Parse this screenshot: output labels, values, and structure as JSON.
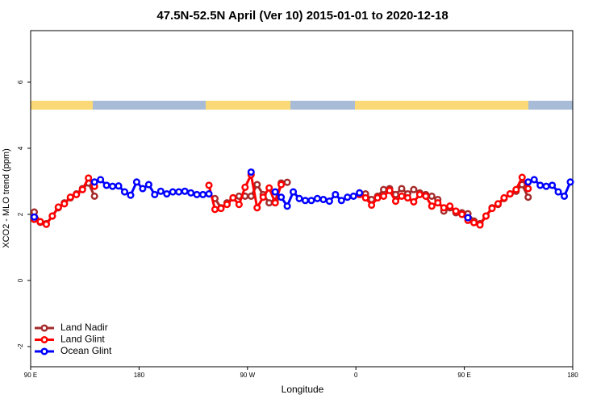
{
  "chart_data": {
    "type": "line",
    "title": "47.5N-52.5N April (Ver 10)   2015-01-01 to 2020-12-18",
    "xlabel": "Longitude",
    "ylabel": "XCO2 - MLO trend (ppm)",
    "x": [
      93,
      98,
      103,
      108,
      113,
      118,
      123,
      128,
      133,
      138,
      143,
      148,
      153,
      158,
      163,
      168,
      173,
      178,
      183,
      188,
      193,
      198,
      203,
      208,
      213,
      218,
      223,
      228,
      233,
      238,
      243,
      248,
      253,
      258,
      263,
      268,
      273,
      278,
      283,
      288,
      293,
      298,
      303,
      308,
      313,
      318,
      323,
      328,
      333,
      338,
      343,
      348,
      353,
      358,
      363,
      368,
      373,
      378,
      383,
      388,
      393,
      398,
      403,
      408,
      413,
      418,
      423,
      428,
      433,
      438,
      443,
      448,
      453,
      458,
      463,
      468,
      473,
      478,
      483,
      488,
      493,
      498,
      503,
      508,
      513,
      518,
      523,
      528,
      533,
      538
    ],
    "series": [
      {
        "name": "Land Nadir",
        "color": "#a52a2a",
        "values": [
          2.07,
          1.76,
          1.72,
          1.95,
          2.2,
          2.35,
          2.5,
          2.62,
          2.78,
          2.95,
          2.55,
          null,
          null,
          null,
          null,
          null,
          null,
          null,
          null,
          null,
          null,
          null,
          null,
          null,
          null,
          null,
          null,
          null,
          null,
          null,
          2.48,
          2.2,
          2.35,
          2.5,
          2.55,
          2.55,
          2.55,
          2.9,
          2.6,
          2.35,
          2.4,
          2.95,
          2.97,
          null,
          null,
          null,
          null,
          null,
          null,
          null,
          null,
          null,
          null,
          null,
          2.65,
          2.62,
          2.45,
          2.55,
          2.75,
          2.78,
          2.6,
          2.78,
          2.62,
          2.75,
          2.65,
          2.6,
          2.55,
          2.45,
          2.1,
          2.2,
          2.05,
          2.05,
          2.02,
          1.8,
          1.72,
          1.95,
          2.2,
          2.3,
          2.48,
          2.62,
          2.7,
          2.9,
          2.52,
          null,
          null,
          null,
          null,
          null,
          null,
          null
        ]
      },
      {
        "name": "Land Glint",
        "color": "#ff0000",
        "values": [
          1.85,
          1.78,
          1.7,
          1.95,
          2.22,
          2.32,
          2.52,
          2.6,
          2.75,
          3.1,
          2.85,
          null,
          null,
          null,
          null,
          null,
          null,
          null,
          null,
          null,
          null,
          null,
          null,
          null,
          null,
          null,
          null,
          null,
          null,
          2.88,
          2.15,
          2.18,
          2.3,
          2.5,
          2.3,
          2.82,
          3.2,
          2.2,
          2.52,
          2.8,
          2.35,
          2.9,
          null,
          null,
          null,
          null,
          null,
          null,
          null,
          null,
          null,
          null,
          null,
          null,
          2.6,
          2.5,
          2.28,
          2.5,
          2.55,
          2.72,
          2.4,
          2.55,
          2.5,
          2.38,
          2.6,
          2.55,
          2.25,
          2.35,
          2.2,
          2.25,
          2.1,
          2.0,
          1.82,
          1.75,
          1.68,
          1.95,
          2.18,
          2.32,
          2.5,
          2.62,
          2.75,
          3.12,
          2.78,
          null,
          null,
          null,
          null,
          null,
          null,
          null
        ]
      },
      {
        "name": "Ocean Glint",
        "color": "#0000ff",
        "values": [
          1.92,
          null,
          null,
          null,
          null,
          null,
          null,
          null,
          null,
          null,
          2.98,
          3.05,
          2.88,
          2.85,
          2.86,
          2.68,
          2.58,
          2.98,
          2.78,
          2.9,
          2.6,
          2.7,
          2.62,
          2.68,
          2.68,
          2.7,
          2.65,
          2.6,
          2.6,
          2.62,
          null,
          null,
          null,
          null,
          null,
          null,
          3.28,
          null,
          null,
          null,
          2.68,
          2.52,
          2.25,
          2.68,
          2.48,
          2.42,
          2.42,
          2.48,
          2.45,
          2.4,
          2.6,
          2.42,
          2.52,
          2.55,
          2.65,
          null,
          null,
          null,
          null,
          null,
          null,
          null,
          null,
          null,
          null,
          null,
          null,
          null,
          null,
          null,
          null,
          null,
          1.9,
          null,
          null,
          null,
          null,
          null,
          null,
          null,
          null,
          null,
          2.98,
          3.05,
          2.88,
          2.85,
          2.88,
          2.68,
          2.55,
          2.98
        ]
      }
    ],
    "xlim": [
      90,
      540
    ],
    "ylim": [
      -2.61,
      7.56
    ],
    "xticks": [
      {
        "value": 90,
        "label": "90 E"
      },
      {
        "value": 180,
        "label": "180"
      },
      {
        "value": 270,
        "label": "90 W"
      },
      {
        "value": 360,
        "label": "0"
      },
      {
        "value": 450,
        "label": "90 E"
      },
      {
        "value": 540,
        "label": "180"
      }
    ],
    "yticks": [
      -2,
      0,
      2,
      4,
      6
    ],
    "legend": "bottomleft"
  }
}
